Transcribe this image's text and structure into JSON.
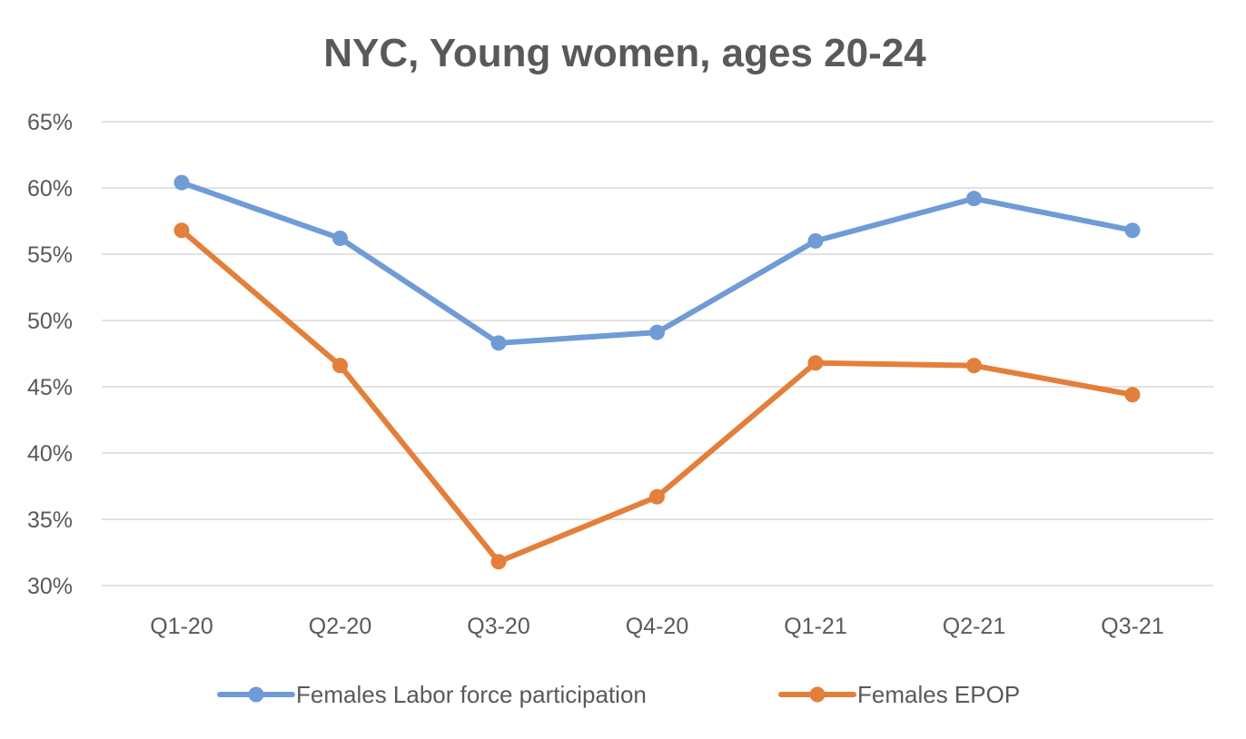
{
  "chart_data": {
    "type": "line",
    "title": "NYC, Young women, ages 20-24",
    "categories": [
      "Q1-20",
      "Q2-20",
      "Q3-20",
      "Q4-20",
      "Q1-21",
      "Q2-21",
      "Q3-21"
    ],
    "series": [
      {
        "name": "Females Labor force participation",
        "color": "#6f9bd6",
        "values": [
          60.4,
          56.2,
          48.3,
          49.1,
          56.0,
          59.2,
          56.8
        ]
      },
      {
        "name": "Females EPOP",
        "color": "#e37f3a",
        "values": [
          56.8,
          46.6,
          31.8,
          36.7,
          46.8,
          46.6,
          44.4
        ]
      }
    ],
    "y_ticks": [
      "30%",
      "35%",
      "40%",
      "45%",
      "50%",
      "55%",
      "60%",
      "65%"
    ],
    "ylim": [
      30,
      65
    ],
    "grid": true,
    "legend_position": "bottom"
  }
}
